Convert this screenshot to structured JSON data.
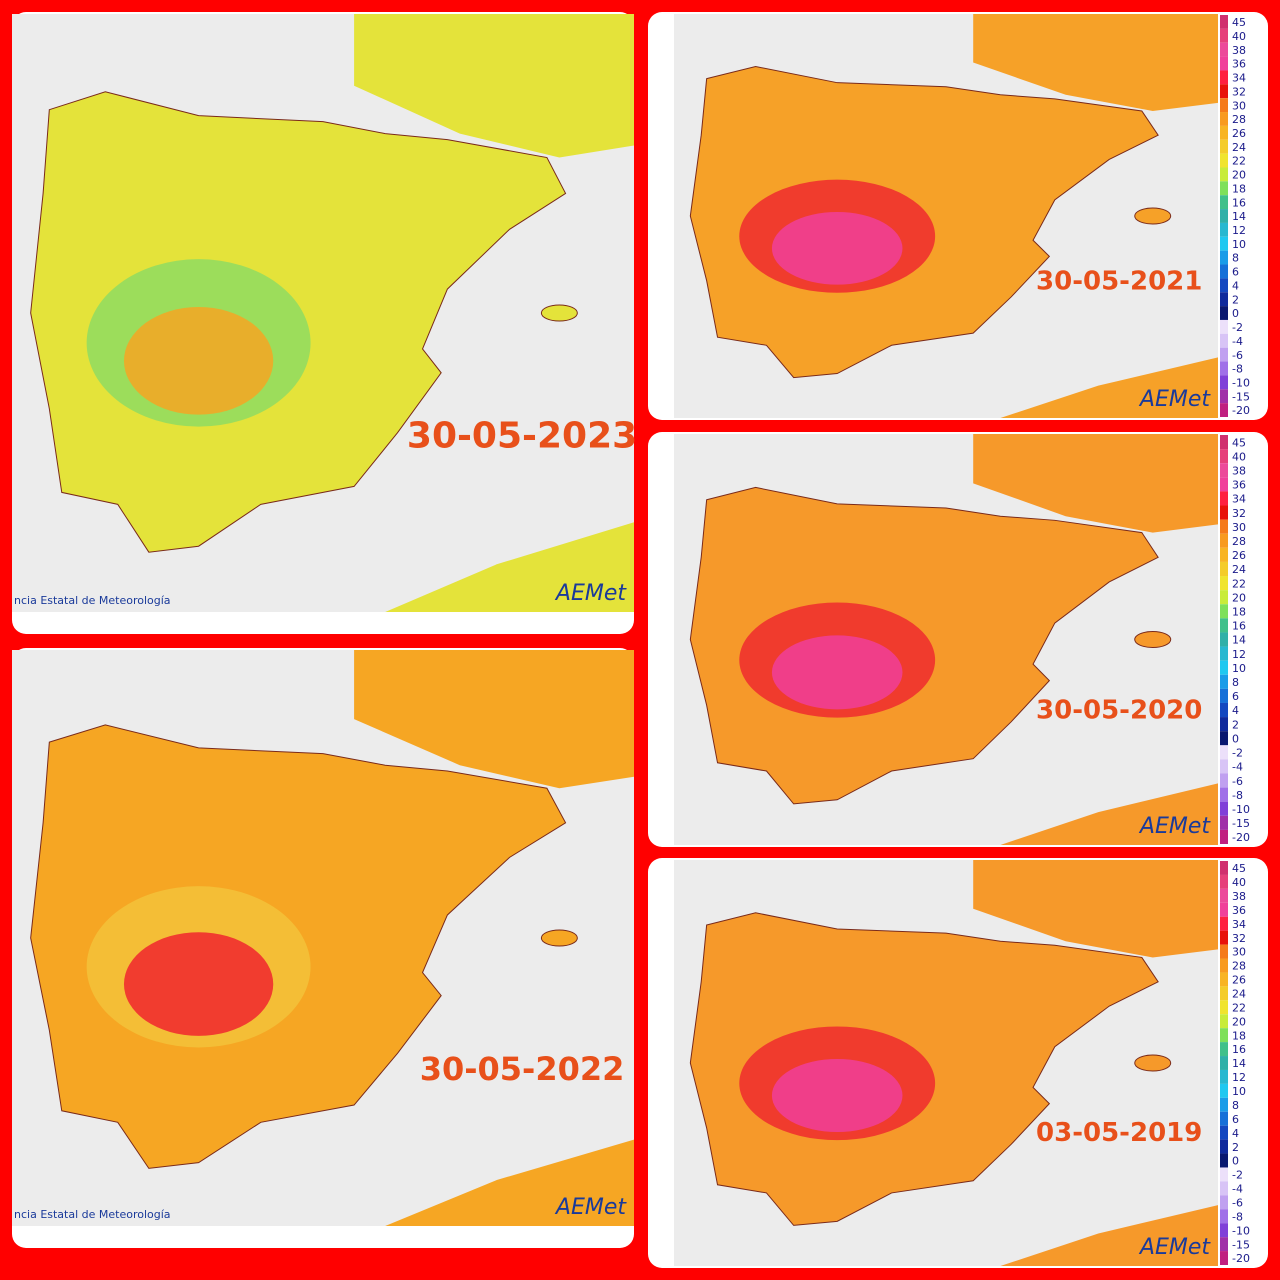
{
  "panels": [
    {
      "date": "30-05-2023",
      "credit": "ncia Estatal de Meteorología",
      "logo": "AEMet",
      "fill": "#e4e33a",
      "mid": "#8fdc62",
      "hot": "#f6a623"
    },
    {
      "date": "30-05-2022",
      "credit": "ncia Estatal de Meteorología",
      "logo": "AEMet",
      "fill": "#f6a623",
      "mid": "#f3c23a",
      "hot": "#f0262e"
    },
    {
      "date": "30-05-2021",
      "logo": "AEMet",
      "fill": "#f6a128",
      "mid": "#ef2a2e",
      "hot": "#f0409a"
    },
    {
      "date": "30-05-2020",
      "logo": "AEMet",
      "fill": "#f6992a",
      "mid": "#ef2a2e",
      "hot": "#f0409a"
    },
    {
      "date": "03-05-2019",
      "logo": "AEMet",
      "fill": "#f6992a",
      "mid": "#ef2a2e",
      "hot": "#f0409a"
    }
  ],
  "legend": {
    "labels": [
      "45",
      "40",
      "38",
      "36",
      "34",
      "32",
      "30",
      "28",
      "26",
      "24",
      "22",
      "20",
      "18",
      "16",
      "14",
      "12",
      "10",
      "8",
      "6",
      "4",
      "2",
      "0",
      "-2",
      "-4",
      "-6",
      "-8",
      "-10",
      "-15",
      "-20"
    ],
    "colors": [
      "#d0306e",
      "#e6407a",
      "#ec4a9a",
      "#f0409a",
      "#ff2040",
      "#e8120a",
      "#f57a1a",
      "#f89a20",
      "#f8b424",
      "#f4cc2a",
      "#f0e42e",
      "#c8ec3a",
      "#7ee05a",
      "#40c08a",
      "#30b0a8",
      "#28b8d0",
      "#20c8f0",
      "#1a9ce8",
      "#1670d8",
      "#1448c0",
      "#102a9c",
      "#0a1870",
      "#ece0fa",
      "#d8c4f6",
      "#c0a0f0",
      "#a070e8",
      "#8040d8",
      "#a030a8",
      "#c02080"
    ]
  }
}
